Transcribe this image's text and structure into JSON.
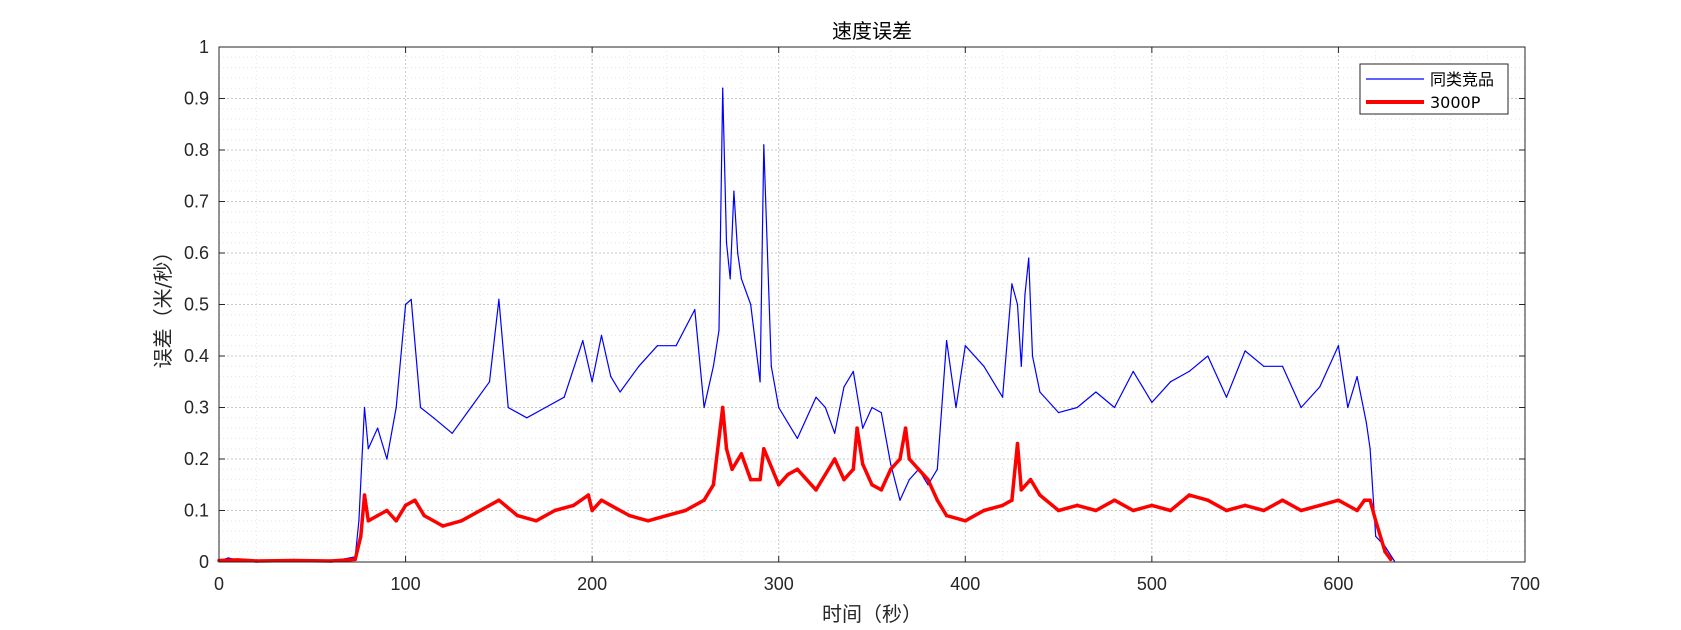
{
  "chart_data": {
    "type": "line",
    "title": "速度误差",
    "xlabel": "时间（秒）",
    "ylabel": "误差（米/秒）",
    "xlim": [
      0,
      700
    ],
    "ylim": [
      0,
      1
    ],
    "xticks": [
      0,
      100,
      200,
      300,
      400,
      500,
      600,
      700
    ],
    "xtick_labels": [
      "0",
      "100",
      "200",
      "300",
      "400",
      "500",
      "600",
      "700"
    ],
    "yticks": [
      0,
      0.1,
      0.2,
      0.3,
      0.4,
      0.5,
      0.6,
      0.7,
      0.8,
      0.9,
      1
    ],
    "ytick_labels": [
      "0",
      "0.1",
      "0.2",
      "0.3",
      "0.4",
      "0.5",
      "0.6",
      "0.7",
      "0.8",
      "0.9",
      "1"
    ],
    "grid": true,
    "minor_grid": true,
    "legend_position": "top-right",
    "series": [
      {
        "name": "同类竞品",
        "color": "#0000ff",
        "line_width": "thin",
        "x": [
          0,
          5,
          10,
          20,
          40,
          60,
          73,
          75,
          78,
          80,
          85,
          90,
          95,
          100,
          103,
          108,
          115,
          125,
          135,
          145,
          150,
          155,
          165,
          175,
          185,
          195,
          200,
          205,
          210,
          215,
          225,
          235,
          245,
          255,
          260,
          265,
          268,
          270,
          272,
          274,
          276,
          278,
          280,
          285,
          290,
          292,
          296,
          300,
          305,
          310,
          320,
          325,
          330,
          335,
          340,
          345,
          350,
          355,
          360,
          365,
          370,
          375,
          380,
          385,
          390,
          395,
          400,
          410,
          420,
          425,
          428,
          430,
          432,
          434,
          436,
          440,
          450,
          460,
          470,
          480,
          490,
          500,
          510,
          520,
          530,
          540,
          550,
          560,
          570,
          580,
          590,
          600,
          605,
          610,
          615,
          617,
          620,
          625,
          630
        ],
        "y": [
          0.002,
          0.008,
          0.004,
          0.002,
          0.004,
          0.001,
          0.01,
          0.08,
          0.3,
          0.22,
          0.26,
          0.2,
          0.3,
          0.5,
          0.51,
          0.3,
          0.28,
          0.25,
          0.3,
          0.35,
          0.51,
          0.3,
          0.28,
          0.3,
          0.32,
          0.43,
          0.35,
          0.44,
          0.36,
          0.33,
          0.38,
          0.42,
          0.42,
          0.49,
          0.3,
          0.38,
          0.45,
          0.92,
          0.62,
          0.55,
          0.72,
          0.6,
          0.55,
          0.5,
          0.35,
          0.81,
          0.38,
          0.3,
          0.27,
          0.24,
          0.32,
          0.3,
          0.25,
          0.34,
          0.37,
          0.26,
          0.3,
          0.29,
          0.19,
          0.12,
          0.16,
          0.18,
          0.15,
          0.18,
          0.43,
          0.3,
          0.42,
          0.38,
          0.32,
          0.54,
          0.5,
          0.38,
          0.52,
          0.59,
          0.4,
          0.33,
          0.29,
          0.3,
          0.33,
          0.3,
          0.37,
          0.31,
          0.35,
          0.37,
          0.4,
          0.32,
          0.41,
          0.38,
          0.38,
          0.3,
          0.34,
          0.42,
          0.3,
          0.36,
          0.27,
          0.22,
          0.05,
          0.03,
          0.002
        ]
      },
      {
        "name": "3000P",
        "color": "#ff0000",
        "line_width": "thick",
        "x": [
          0,
          10,
          20,
          40,
          60,
          73,
          76,
          78,
          80,
          85,
          90,
          95,
          100,
          105,
          110,
          120,
          130,
          140,
          150,
          160,
          170,
          180,
          190,
          198,
          200,
          205,
          210,
          220,
          230,
          240,
          250,
          260,
          265,
          270,
          272,
          275,
          280,
          285,
          290,
          292,
          300,
          305,
          310,
          320,
          330,
          335,
          340,
          342,
          345,
          350,
          355,
          360,
          365,
          368,
          370,
          375,
          380,
          385,
          390,
          400,
          410,
          420,
          425,
          428,
          430,
          435,
          440,
          450,
          460,
          470,
          480,
          490,
          500,
          510,
          520,
          530,
          540,
          550,
          560,
          570,
          580,
          590,
          600,
          610,
          614,
          617,
          620,
          625,
          628
        ],
        "y": [
          0.003,
          0.004,
          0.002,
          0.003,
          0.002,
          0.005,
          0.05,
          0.13,
          0.08,
          0.09,
          0.1,
          0.08,
          0.11,
          0.12,
          0.09,
          0.07,
          0.08,
          0.1,
          0.12,
          0.09,
          0.08,
          0.1,
          0.11,
          0.13,
          0.1,
          0.12,
          0.11,
          0.09,
          0.08,
          0.09,
          0.1,
          0.12,
          0.15,
          0.3,
          0.22,
          0.18,
          0.21,
          0.16,
          0.16,
          0.22,
          0.15,
          0.17,
          0.18,
          0.14,
          0.2,
          0.16,
          0.18,
          0.26,
          0.19,
          0.15,
          0.14,
          0.18,
          0.2,
          0.26,
          0.2,
          0.18,
          0.16,
          0.12,
          0.09,
          0.08,
          0.1,
          0.11,
          0.12,
          0.23,
          0.14,
          0.16,
          0.13,
          0.1,
          0.11,
          0.1,
          0.12,
          0.1,
          0.11,
          0.1,
          0.13,
          0.12,
          0.1,
          0.11,
          0.1,
          0.12,
          0.1,
          0.11,
          0.12,
          0.1,
          0.12,
          0.12,
          0.08,
          0.02,
          0.005
        ]
      }
    ]
  }
}
